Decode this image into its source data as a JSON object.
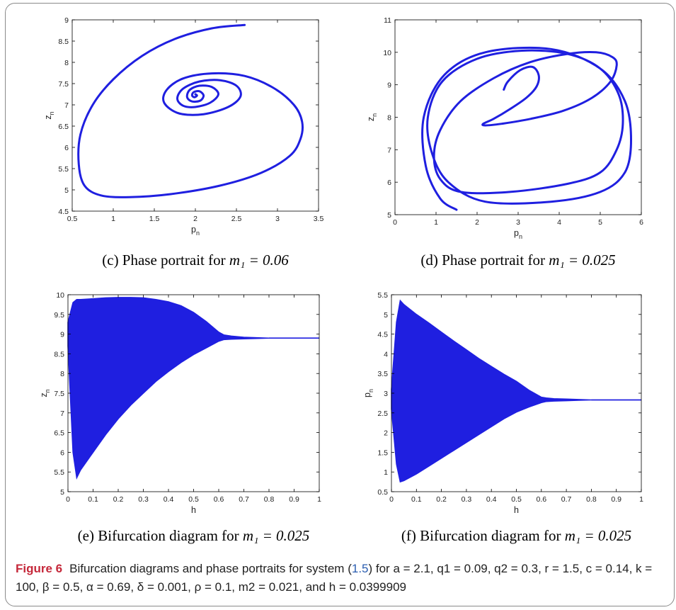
{
  "figure": {
    "label": "Figure 6",
    "caption_prefix": "Bifurcation diagrams and phase portraits for system (",
    "caption_ref": "1.5",
    "caption_suffix": ") for a = 2.1, q1 = 0.09, q2 = 0.3, r = 1.5, c = 0.14, k = 100, β = 0.5, α = 0.69, δ = 0.001, ρ = 0.1, m2 = 0.021, and h = 0.0399909"
  },
  "subcaptions": {
    "c": {
      "text": "(c) Phase portrait for ",
      "math": "m₁ = 0.06"
    },
    "d": {
      "text": "(d) Phase portrait for ",
      "math": "m₁ = 0.025"
    },
    "e": {
      "text": "(e) Bifurcation diagram for ",
      "math": "m₁ = 0.025"
    },
    "f": {
      "text": "(f) Bifurcation diagram for ",
      "math": "m₁ = 0.025"
    }
  },
  "chart_data": [
    {
      "id": "c",
      "type": "line",
      "xlabel": "p",
      "xlabel_sub": "n",
      "ylabel": "z",
      "ylabel_sub": "n",
      "xlim": [
        0.5,
        3.5
      ],
      "ylim": [
        4.5,
        9
      ],
      "xticks": [
        0.5,
        1,
        1.5,
        2,
        2.5,
        3,
        3.5
      ],
      "xtick_labels": [
        "0.5",
        "1",
        "1.5",
        "2",
        "2.5",
        "3",
        "3.5"
      ],
      "yticks": [
        4.5,
        5,
        5.5,
        6,
        6.5,
        7,
        7.5,
        8,
        8.5,
        9
      ],
      "ytick_labels": [
        "4.5",
        "5",
        "5.5",
        "6",
        "6.5",
        "7",
        "7.5",
        "8",
        "8.5",
        "9"
      ],
      "series": [
        {
          "color": "#1f1fe0",
          "x": [
            2.6,
            2.2,
            1.75,
            1.35,
            1.0,
            0.75,
            0.6,
            0.58,
            0.65,
            0.85,
            1.2,
            1.7,
            2.3,
            2.8,
            3.15,
            3.28,
            3.3,
            3.2,
            2.95,
            2.6,
            2.2,
            1.85,
            1.65,
            1.62,
            1.8,
            2.1,
            2.4,
            2.55,
            2.5,
            2.3,
            2.05,
            1.85,
            1.78,
            1.85,
            2.0,
            2.18,
            2.28,
            2.2,
            2.05,
            1.93,
            1.9,
            1.96,
            2.06,
            2.1,
            2.05,
            1.98,
            1.96,
            1.99,
            2.02,
            2.0
          ],
          "y": [
            8.88,
            8.8,
            8.55,
            8.15,
            7.6,
            7.0,
            6.3,
            5.6,
            5.1,
            4.87,
            4.83,
            4.9,
            5.1,
            5.4,
            5.8,
            6.2,
            6.6,
            7.0,
            7.4,
            7.68,
            7.74,
            7.62,
            7.35,
            7.05,
            6.8,
            6.78,
            6.95,
            7.2,
            7.45,
            7.58,
            7.55,
            7.38,
            7.15,
            6.98,
            6.95,
            7.05,
            7.25,
            7.42,
            7.45,
            7.35,
            7.18,
            7.08,
            7.1,
            7.22,
            7.32,
            7.3,
            7.22,
            7.18,
            7.22,
            7.25
          ]
        }
      ]
    },
    {
      "id": "d",
      "type": "line",
      "xlabel": "p",
      "xlabel_sub": "n",
      "ylabel": "z",
      "ylabel_sub": "n",
      "xlim": [
        0,
        6
      ],
      "ylim": [
        5,
        11
      ],
      "xticks": [
        0,
        1,
        2,
        3,
        4,
        5,
        6
      ],
      "xtick_labels": [
        "0",
        "1",
        "2",
        "3",
        "4",
        "5",
        "6"
      ],
      "yticks": [
        5,
        6,
        7,
        8,
        9,
        10,
        11
      ],
      "ytick_labels": [
        "5",
        "6",
        "7",
        "8",
        "9",
        "10",
        "11"
      ],
      "series": [
        {
          "color": "#1f1fe0",
          "x": [
            2.65,
            2.75,
            3.05,
            3.35,
            3.5,
            3.45,
            3.2,
            2.8,
            2.4,
            2.15,
            2.2,
            2.6,
            3.3,
            4.1,
            4.8,
            5.25,
            5.4,
            5.3,
            4.9,
            4.2,
            3.3,
            2.4,
            1.6,
            1.1,
            0.95,
            1.1,
            1.6,
            2.8,
            4.2,
            5.0,
            5.4,
            5.55,
            5.45,
            5.0,
            4.2,
            3.1,
            2.0,
            1.15,
            0.8,
            0.9,
            1.3,
            2.2,
            3.8,
            5.0,
            5.6,
            5.75,
            5.6,
            5.0,
            3.8,
            2.2,
            1.2,
            0.7,
            0.75,
            1.1,
            1.5
          ],
          "y": [
            8.85,
            9.1,
            9.45,
            9.55,
            9.3,
            8.95,
            8.6,
            8.25,
            7.95,
            7.8,
            7.75,
            7.8,
            7.95,
            8.2,
            8.6,
            9.1,
            9.6,
            9.85,
            10.0,
            9.95,
            9.7,
            9.2,
            8.5,
            7.6,
            6.8,
            6.1,
            5.7,
            5.7,
            5.95,
            6.3,
            7.0,
            7.8,
            8.7,
            9.5,
            9.95,
            10.05,
            9.8,
            9.1,
            8.0,
            6.9,
            6.0,
            5.4,
            5.4,
            5.7,
            6.3,
            7.3,
            8.5,
            9.5,
            10.1,
            10.0,
            9.3,
            8.0,
            6.5,
            5.5,
            5.15
          ]
        }
      ]
    },
    {
      "id": "e",
      "type": "area",
      "xlabel": "h",
      "ylabel": "z",
      "ylabel_sub": "n",
      "xlim": [
        0,
        1
      ],
      "ylim": [
        5,
        10
      ],
      "xticks": [
        0,
        0.1,
        0.2,
        0.3,
        0.4,
        0.5,
        0.6,
        0.7,
        0.8,
        0.9,
        1
      ],
      "xtick_labels": [
        "0",
        "0.1",
        "0.2",
        "0.3",
        "0.4",
        "0.5",
        "0.6",
        "0.7",
        "0.8",
        "0.9",
        "1"
      ],
      "yticks": [
        5,
        5.5,
        6,
        6.5,
        7,
        7.5,
        8,
        8.5,
        9,
        9.5,
        10
      ],
      "ytick_labels": [
        "5",
        "5.5",
        "6",
        "6.5",
        "7",
        "7.5",
        "8",
        "8.5",
        "9",
        "9.5",
        "10"
      ],
      "series": [
        {
          "color": "#1f1fe0",
          "x": [
            0.0,
            0.02,
            0.035,
            0.05,
            0.1,
            0.15,
            0.2,
            0.25,
            0.3,
            0.35,
            0.4,
            0.45,
            0.5,
            0.55,
            0.6,
            0.62,
            0.65,
            0.7,
            0.75,
            0.8,
            0.85,
            0.9,
            0.95,
            1.0
          ],
          "upper": [
            9.3,
            9.8,
            9.88,
            9.88,
            9.9,
            9.92,
            9.93,
            9.93,
            9.92,
            9.88,
            9.82,
            9.72,
            9.55,
            9.32,
            9.05,
            8.98,
            8.95,
            8.92,
            8.91,
            8.9,
            8.9,
            8.9,
            8.9,
            8.9
          ],
          "lower": [
            8.7,
            6.0,
            5.35,
            5.55,
            6.0,
            6.45,
            6.85,
            7.2,
            7.5,
            7.8,
            8.05,
            8.28,
            8.48,
            8.65,
            8.82,
            8.86,
            8.87,
            8.88,
            8.89,
            8.9,
            8.9,
            8.9,
            8.9,
            8.9
          ]
        }
      ]
    },
    {
      "id": "f",
      "type": "area",
      "xlabel": "h",
      "ylabel": "p",
      "ylabel_sub": "n",
      "xlim": [
        0,
        1
      ],
      "ylim": [
        0.5,
        5.5
      ],
      "xticks": [
        0,
        0.1,
        0.2,
        0.3,
        0.4,
        0.5,
        0.6,
        0.7,
        0.8,
        0.9,
        1
      ],
      "xtick_labels": [
        "0",
        "0.1",
        "0.2",
        "0.3",
        "0.4",
        "0.5",
        "0.6",
        "0.7",
        "0.8",
        "0.9",
        "1"
      ],
      "yticks": [
        0.5,
        1,
        1.5,
        2,
        2.5,
        3,
        3.5,
        4,
        4.5,
        5,
        5.5
      ],
      "ytick_labels": [
        "0.5",
        "1",
        "1.5",
        "2",
        "2.5",
        "3",
        "3.5",
        "4",
        "4.5",
        "5",
        "5.5"
      ],
      "series": [
        {
          "color": "#1f1fe0",
          "x": [
            0.0,
            0.02,
            0.035,
            0.05,
            0.1,
            0.15,
            0.2,
            0.25,
            0.3,
            0.35,
            0.4,
            0.45,
            0.5,
            0.55,
            0.6,
            0.62,
            0.65,
            0.7,
            0.75,
            0.8,
            0.85,
            0.9,
            0.95,
            1.0
          ],
          "upper": [
            3.1,
            4.8,
            5.35,
            5.25,
            5.0,
            4.78,
            4.55,
            4.32,
            4.1,
            3.88,
            3.68,
            3.48,
            3.3,
            3.08,
            2.9,
            2.88,
            2.86,
            2.85,
            2.84,
            2.83,
            2.83,
            2.83,
            2.83,
            2.83
          ],
          "lower": [
            2.6,
            1.2,
            0.75,
            0.78,
            0.95,
            1.15,
            1.35,
            1.55,
            1.75,
            1.95,
            2.15,
            2.35,
            2.52,
            2.65,
            2.76,
            2.79,
            2.8,
            2.81,
            2.82,
            2.83,
            2.83,
            2.83,
            2.83,
            2.83
          ]
        }
      ]
    }
  ]
}
